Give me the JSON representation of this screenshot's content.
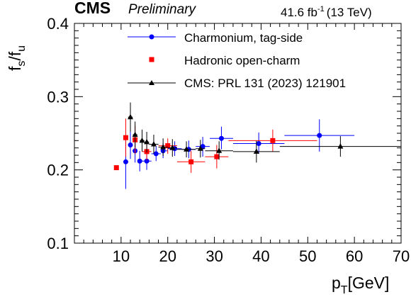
{
  "chart_data": {
    "type": "scatter",
    "header": {
      "experiment": "CMS",
      "status": "Preliminary",
      "lumi_value": "41.6 fb",
      "lumi_exp": "-1",
      "energy": "(13 TeV)"
    },
    "xlabel": {
      "main": "p",
      "sub": "T",
      "unit": "[GeV]"
    },
    "ylabel": {
      "a": "f",
      "a_sub": "s",
      "slash": "/f",
      "b_sub": "u"
    },
    "xlim": [
      0,
      70
    ],
    "ylim": [
      0.1,
      0.4
    ],
    "xticks": [
      10,
      20,
      30,
      40,
      50,
      60,
      70
    ],
    "yticks": [
      0.1,
      0.2,
      0.3,
      0.4
    ],
    "ytick_labels": [
      "0.1",
      "0.2",
      "0.3",
      "0.4"
    ],
    "legend_position": "top-right",
    "series": [
      {
        "name": "Charmonium, tag-side",
        "color": "#0000ff",
        "marker": "circle",
        "points": [
          {
            "x": 11.0,
            "xlo": 10.5,
            "xhi": 11.5,
            "y": 0.211,
            "ylo": 0.174,
            "yhi": 0.245
          },
          {
            "x": 12.0,
            "xlo": 11.5,
            "xhi": 12.5,
            "y": 0.234,
            "ylo": 0.215,
            "yhi": 0.252
          },
          {
            "x": 13.0,
            "xlo": 12.5,
            "xhi": 13.5,
            "y": 0.226,
            "ylo": 0.21,
            "yhi": 0.243
          },
          {
            "x": 14.0,
            "xlo": 13.5,
            "xhi": 14.5,
            "y": 0.212,
            "ylo": 0.198,
            "yhi": 0.226
          },
          {
            "x": 15.5,
            "xlo": 14.5,
            "xhi": 16.5,
            "y": 0.212,
            "ylo": 0.2,
            "yhi": 0.224
          },
          {
            "x": 17.5,
            "xlo": 16.5,
            "xhi": 18.5,
            "y": 0.222,
            "ylo": 0.212,
            "yhi": 0.232
          },
          {
            "x": 19.0,
            "xlo": 18.5,
            "xhi": 20.0,
            "y": 0.226,
            "ylo": 0.216,
            "yhi": 0.237
          },
          {
            "x": 21.5,
            "xlo": 20.0,
            "xhi": 23.0,
            "y": 0.229,
            "ylo": 0.219,
            "yhi": 0.239
          },
          {
            "x": 24.5,
            "xlo": 23.0,
            "xhi": 26.0,
            "y": 0.228,
            "ylo": 0.216,
            "yhi": 0.24
          },
          {
            "x": 27.5,
            "xlo": 26.0,
            "xhi": 29.0,
            "y": 0.232,
            "ylo": 0.218,
            "yhi": 0.245
          },
          {
            "x": 31.5,
            "xlo": 29.0,
            "xhi": 34.0,
            "y": 0.243,
            "ylo": 0.228,
            "yhi": 0.259
          },
          {
            "x": 39.5,
            "xlo": 34.0,
            "xhi": 45.0,
            "y": 0.236,
            "ylo": 0.222,
            "yhi": 0.251
          },
          {
            "x": 52.5,
            "xlo": 45.0,
            "xhi": 60.0,
            "y": 0.247,
            "ylo": 0.225,
            "yhi": 0.269
          }
        ]
      },
      {
        "name": "Hadronic open-charm",
        "color": "#ff0000",
        "marker": "square",
        "points": [
          {
            "x": 9.0,
            "xlo": 8.5,
            "xhi": 9.5,
            "y": 0.203,
            "ylo": 0.2,
            "yhi": 0.206
          },
          {
            "x": 11.0,
            "xlo": 10.5,
            "xhi": 11.5,
            "y": 0.244,
            "ylo": 0.218,
            "yhi": 0.27
          },
          {
            "x": 13.0,
            "xlo": 12.5,
            "xhi": 13.5,
            "y": 0.241,
            "ylo": 0.222,
            "yhi": 0.26
          },
          {
            "x": 15.5,
            "xlo": 14.5,
            "xhi": 16.5,
            "y": 0.225,
            "ylo": 0.213,
            "yhi": 0.237
          },
          {
            "x": 20.0,
            "xlo": 18.0,
            "xhi": 22.0,
            "y": 0.233,
            "ylo": 0.222,
            "yhi": 0.243
          },
          {
            "x": 25.0,
            "xlo": 22.0,
            "xhi": 28.0,
            "y": 0.211,
            "ylo": 0.196,
            "yhi": 0.226
          },
          {
            "x": 30.5,
            "xlo": 28.0,
            "xhi": 33.0,
            "y": 0.218,
            "ylo": 0.202,
            "yhi": 0.234
          },
          {
            "x": 42.5,
            "xlo": 33.0,
            "xhi": 52.0,
            "y": 0.24,
            "ylo": 0.225,
            "yhi": 0.255
          }
        ]
      },
      {
        "name": "CMS: PRL 131 (2023) 121901",
        "color": "#000000",
        "marker": "triangle",
        "points": [
          {
            "x": 12.0,
            "xlo": 11.5,
            "xhi": 12.5,
            "y": 0.272,
            "ylo": 0.252,
            "yhi": 0.292
          },
          {
            "x": 13.0,
            "xlo": 12.5,
            "xhi": 13.5,
            "y": 0.248,
            "ylo": 0.23,
            "yhi": 0.266
          },
          {
            "x": 14.5,
            "xlo": 14.0,
            "xhi": 15.0,
            "y": 0.24,
            "ylo": 0.225,
            "yhi": 0.255
          },
          {
            "x": 15.5,
            "xlo": 15.0,
            "xhi": 16.0,
            "y": 0.238,
            "ylo": 0.224,
            "yhi": 0.252
          },
          {
            "x": 17.0,
            "xlo": 16.0,
            "xhi": 18.0,
            "y": 0.235,
            "ylo": 0.222,
            "yhi": 0.248
          },
          {
            "x": 19.0,
            "xlo": 18.0,
            "xhi": 20.0,
            "y": 0.231,
            "ylo": 0.219,
            "yhi": 0.243
          },
          {
            "x": 21.0,
            "xlo": 20.0,
            "xhi": 22.0,
            "y": 0.23,
            "ylo": 0.218,
            "yhi": 0.242
          },
          {
            "x": 24.0,
            "xlo": 22.0,
            "xhi": 26.0,
            "y": 0.228,
            "ylo": 0.217,
            "yhi": 0.239
          },
          {
            "x": 27.0,
            "xlo": 26.0,
            "xhi": 28.0,
            "y": 0.229,
            "ylo": 0.217,
            "yhi": 0.241
          },
          {
            "x": 31.0,
            "xlo": 28.0,
            "xhi": 34.0,
            "y": 0.226,
            "ylo": 0.214,
            "yhi": 0.239
          },
          {
            "x": 39.0,
            "xlo": 34.0,
            "xhi": 44.0,
            "y": 0.225,
            "ylo": 0.21,
            "yhi": 0.24
          },
          {
            "x": 57.0,
            "xlo": 44.0,
            "xhi": 70.0,
            "y": 0.232,
            "ylo": 0.218,
            "yhi": 0.246
          }
        ]
      }
    ]
  }
}
